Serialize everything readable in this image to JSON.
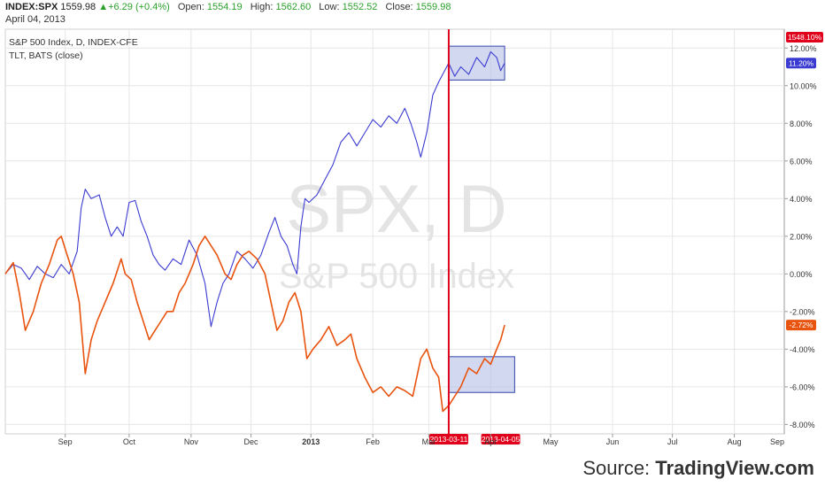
{
  "header": {
    "symbol": "INDEX:SPX",
    "last": "1559.98",
    "change": "+6.29 (+0.4%)",
    "open_label": "Open:",
    "open": "1554.19",
    "high_label": "High:",
    "high": "1562.60",
    "low_label": "Low:",
    "low": "1552.52",
    "close_label": "Close:",
    "close": "1559.98",
    "date": "April 04, 2013"
  },
  "legend": {
    "line1": "S&P 500 Index, D, INDEX-CFE",
    "line2": "TLT, BATS (close)"
  },
  "watermark": {
    "big": "SPX, D",
    "small": "S&P 500 Index"
  },
  "source": {
    "prefix": "Source: ",
    "brand": "TradingView.com"
  },
  "colors": {
    "spx": "#3b3bd1",
    "tlt": "#e8530e",
    "marker": "#e0001b",
    "box_fill": "#b4bee6",
    "box_stroke": "#3344aa"
  },
  "chart_data": {
    "type": "line",
    "y_unit": "%",
    "ylim": [
      -8.5,
      13.0
    ],
    "yticks": [
      "12.00%",
      "10.00%",
      "8.00%",
      "6.00%",
      "4.00%",
      "2.00%",
      "0.00%",
      "-2.00%",
      "-4.00%",
      "-6.00%",
      "-8.00%"
    ],
    "ytick_values": [
      12,
      10,
      8,
      6,
      4,
      2,
      0,
      -2,
      -4,
      -6,
      -8
    ],
    "xticks": [
      "Sep",
      "Oct",
      "Nov",
      "Dec",
      "2013",
      "Feb",
      "Mar",
      "Apr",
      "May",
      "Jun",
      "Jul",
      "Aug",
      "Sep"
    ],
    "xlim": [
      0,
      390
    ],
    "xtick_positions": [
      30,
      62,
      93,
      123,
      153,
      184,
      212,
      243,
      273,
      304,
      334,
      365,
      396
    ],
    "price_label": "1548.10%",
    "current_labels": {
      "spx": "11.20%",
      "tlt": "-2.72%"
    },
    "marker_labels": {
      "start": "2013-03-11",
      "end": "2013-04-05"
    },
    "marker_x": {
      "start": 222,
      "end": 248
    },
    "series": [
      {
        "key": "spx",
        "points": [
          [
            0,
            0.0
          ],
          [
            4,
            0.5
          ],
          [
            8,
            0.3
          ],
          [
            12,
            -0.3
          ],
          [
            16,
            0.4
          ],
          [
            20,
            0.0
          ],
          [
            24,
            -0.2
          ],
          [
            28,
            0.5
          ],
          [
            32,
            0.0
          ],
          [
            36,
            1.2
          ],
          [
            38,
            3.5
          ],
          [
            40,
            4.5
          ],
          [
            43,
            4.0
          ],
          [
            47,
            4.2
          ],
          [
            50,
            3.0
          ],
          [
            53,
            2.0
          ],
          [
            56,
            2.5
          ],
          [
            59,
            2.0
          ],
          [
            62,
            3.8
          ],
          [
            65,
            3.9
          ],
          [
            68,
            2.8
          ],
          [
            71,
            2.0
          ],
          [
            74,
            1.0
          ],
          [
            77,
            0.5
          ],
          [
            80,
            0.2
          ],
          [
            84,
            0.8
          ],
          [
            88,
            0.5
          ],
          [
            92,
            1.8
          ],
          [
            96,
            1.0
          ],
          [
            100,
            -0.5
          ],
          [
            103,
            -2.8
          ],
          [
            106,
            -1.5
          ],
          [
            109,
            -0.5
          ],
          [
            112,
            0.0
          ],
          [
            116,
            1.2
          ],
          [
            120,
            0.8
          ],
          [
            124,
            0.3
          ],
          [
            128,
            1.0
          ],
          [
            132,
            2.2
          ],
          [
            135,
            3.0
          ],
          [
            138,
            2.0
          ],
          [
            141,
            1.5
          ],
          [
            144,
            0.5
          ],
          [
            146,
            0.0
          ],
          [
            148,
            2.5
          ],
          [
            150,
            4.0
          ],
          [
            152,
            3.8
          ],
          [
            156,
            4.2
          ],
          [
            160,
            5.0
          ],
          [
            164,
            5.8
          ],
          [
            168,
            7.0
          ],
          [
            172,
            7.5
          ],
          [
            176,
            6.8
          ],
          [
            180,
            7.5
          ],
          [
            184,
            8.2
          ],
          [
            188,
            7.8
          ],
          [
            192,
            8.4
          ],
          [
            196,
            8.0
          ],
          [
            200,
            8.8
          ],
          [
            203,
            8.0
          ],
          [
            206,
            7.0
          ],
          [
            208,
            6.2
          ],
          [
            211,
            7.5
          ],
          [
            214,
            9.5
          ],
          [
            217,
            10.2
          ],
          [
            220,
            10.8
          ],
          [
            222,
            11.2
          ],
          [
            225,
            10.5
          ],
          [
            228,
            11.0
          ],
          [
            232,
            10.6
          ],
          [
            236,
            11.5
          ],
          [
            240,
            11.0
          ],
          [
            243,
            11.8
          ],
          [
            246,
            11.5
          ],
          [
            248,
            10.8
          ],
          [
            250,
            11.2
          ]
        ]
      },
      {
        "key": "tlt",
        "points": [
          [
            0,
            0.0
          ],
          [
            4,
            0.6
          ],
          [
            7,
            -1.0
          ],
          [
            10,
            -3.0
          ],
          [
            14,
            -2.0
          ],
          [
            18,
            -0.5
          ],
          [
            22,
            0.5
          ],
          [
            26,
            1.8
          ],
          [
            28,
            2.0
          ],
          [
            31,
            1.0
          ],
          [
            34,
            0.0
          ],
          [
            37,
            -1.5
          ],
          [
            40,
            -5.3
          ],
          [
            43,
            -3.5
          ],
          [
            46,
            -2.5
          ],
          [
            50,
            -1.5
          ],
          [
            54,
            -0.5
          ],
          [
            58,
            0.8
          ],
          [
            60,
            0.0
          ],
          [
            63,
            -0.3
          ],
          [
            66,
            -1.5
          ],
          [
            69,
            -2.5
          ],
          [
            72,
            -3.5
          ],
          [
            75,
            -3.0
          ],
          [
            78,
            -2.5
          ],
          [
            81,
            -2.0
          ],
          [
            84,
            -2.0
          ],
          [
            87,
            -1.0
          ],
          [
            90,
            -0.5
          ],
          [
            94,
            0.5
          ],
          [
            97,
            1.5
          ],
          [
            100,
            2.0
          ],
          [
            103,
            1.5
          ],
          [
            106,
            1.0
          ],
          [
            110,
            0.0
          ],
          [
            113,
            -0.3
          ],
          [
            116,
            0.5
          ],
          [
            119,
            1.0
          ],
          [
            122,
            1.2
          ],
          [
            126,
            0.8
          ],
          [
            130,
            0.0
          ],
          [
            133,
            -1.5
          ],
          [
            136,
            -3.0
          ],
          [
            139,
            -2.5
          ],
          [
            142,
            -1.5
          ],
          [
            145,
            -1.0
          ],
          [
            148,
            -2.0
          ],
          [
            151,
            -4.5
          ],
          [
            154,
            -4.0
          ],
          [
            158,
            -3.5
          ],
          [
            162,
            -2.8
          ],
          [
            166,
            -3.8
          ],
          [
            170,
            -3.5
          ],
          [
            173,
            -3.2
          ],
          [
            176,
            -4.5
          ],
          [
            180,
            -5.5
          ],
          [
            184,
            -6.3
          ],
          [
            188,
            -6.0
          ],
          [
            192,
            -6.5
          ],
          [
            196,
            -6.0
          ],
          [
            200,
            -6.2
          ],
          [
            204,
            -6.5
          ],
          [
            208,
            -4.5
          ],
          [
            211,
            -4.0
          ],
          [
            214,
            -5.0
          ],
          [
            217,
            -5.5
          ],
          [
            219,
            -7.3
          ],
          [
            222,
            -7.0
          ],
          [
            225,
            -6.5
          ],
          [
            228,
            -6.0
          ],
          [
            232,
            -5.0
          ],
          [
            236,
            -5.3
          ],
          [
            240,
            -4.5
          ],
          [
            243,
            -4.8
          ],
          [
            246,
            -4.0
          ],
          [
            248,
            -3.5
          ],
          [
            250,
            -2.72
          ]
        ]
      }
    ],
    "boxes": [
      {
        "x0": 222,
        "x1": 250,
        "y0": 10.3,
        "y1": 12.1
      },
      {
        "x0": 222,
        "x1": 255,
        "y0": -6.3,
        "y1": -4.4
      }
    ]
  }
}
